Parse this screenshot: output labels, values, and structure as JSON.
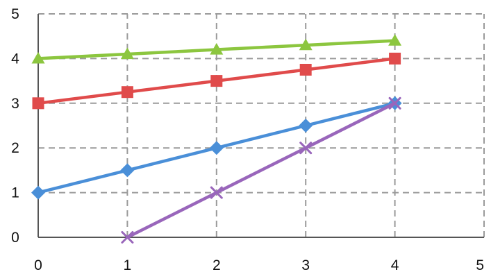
{
  "chart_data": {
    "type": "line",
    "title": "",
    "xlabel": "",
    "ylabel": "",
    "xlim": [
      0,
      5
    ],
    "ylim": [
      0,
      5
    ],
    "x_ticks": [
      "0",
      "1",
      "2",
      "3",
      "4",
      "5"
    ],
    "y_ticks": [
      "0",
      "1",
      "2",
      "3",
      "4",
      "5"
    ],
    "grid": true,
    "legend": "none",
    "series": [
      {
        "marker": "triangle",
        "color": "#8cc63f",
        "x": [
          0,
          1,
          2,
          3,
          4
        ],
        "y": [
          4.0,
          4.1,
          4.2,
          4.3,
          4.4
        ]
      },
      {
        "marker": "square",
        "color": "#e04b4b",
        "x": [
          0,
          1,
          2,
          3,
          4
        ],
        "y": [
          3.0,
          3.25,
          3.5,
          3.75,
          4.0
        ]
      },
      {
        "marker": "diamond",
        "color": "#4a8fd8",
        "x": [
          0,
          1,
          2,
          3,
          4
        ],
        "y": [
          1.0,
          1.5,
          2.0,
          2.5,
          3.0
        ]
      },
      {
        "marker": "x",
        "color": "#9966bb",
        "x": [
          1,
          2,
          3,
          4
        ],
        "y": [
          0.0,
          1.0,
          2.0,
          3.0
        ]
      }
    ]
  }
}
